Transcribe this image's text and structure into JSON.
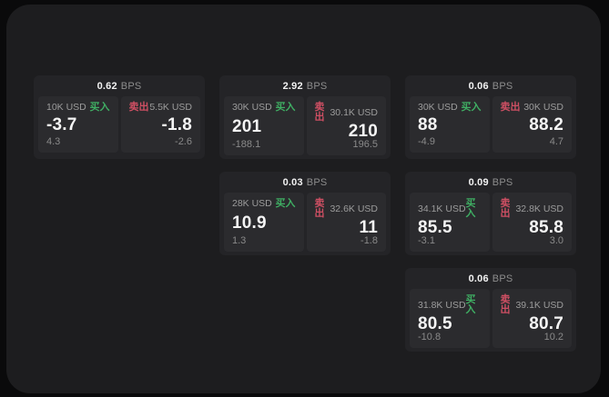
{
  "labels": {
    "bps": "BPS",
    "buy": "买入",
    "sell": "卖出"
  },
  "colors": {
    "buy_green": "#3fae63",
    "sell_red": "#ce4f63",
    "panel_bg": "#1d1d1f",
    "card_bg": "#242427",
    "tile_bg": "#2b2b2e",
    "page_bg": "#0a0a0b"
  },
  "cards": [
    {
      "bps": "0.62",
      "buy": {
        "size": "10K USD",
        "value": "-3.7",
        "delta": "4.3"
      },
      "sell": {
        "size": "5.5K USD",
        "value": "-1.8",
        "delta": "-2.6"
      }
    },
    {
      "bps": "2.92",
      "buy": {
        "size": "30K USD",
        "value": "201",
        "delta": "-188.1"
      },
      "sell": {
        "size": "30.1K USD",
        "value": "210",
        "delta": "196.5"
      }
    },
    {
      "bps": "0.06",
      "buy": {
        "size": "30K USD",
        "value": "88",
        "delta": "-4.9"
      },
      "sell": {
        "size": "30K USD",
        "value": "88.2",
        "delta": "4.7"
      }
    },
    {
      "bps": "0.03",
      "buy": {
        "size": "28K USD",
        "value": "10.9",
        "delta": "1.3"
      },
      "sell": {
        "size": "32.6K USD",
        "value": "11",
        "delta": "-1.8"
      }
    },
    {
      "bps": "0.09",
      "buy": {
        "size": "34.1K USD",
        "value": "85.5",
        "delta": "-3.1"
      },
      "sell": {
        "size": "32.8K USD",
        "value": "85.8",
        "delta": "3.0"
      }
    },
    {
      "bps": "0.06",
      "buy": {
        "size": "31.8K USD",
        "value": "80.5",
        "delta": "-10.8"
      },
      "sell": {
        "size": "39.1K USD",
        "value": "80.7",
        "delta": "10.2"
      }
    }
  ]
}
